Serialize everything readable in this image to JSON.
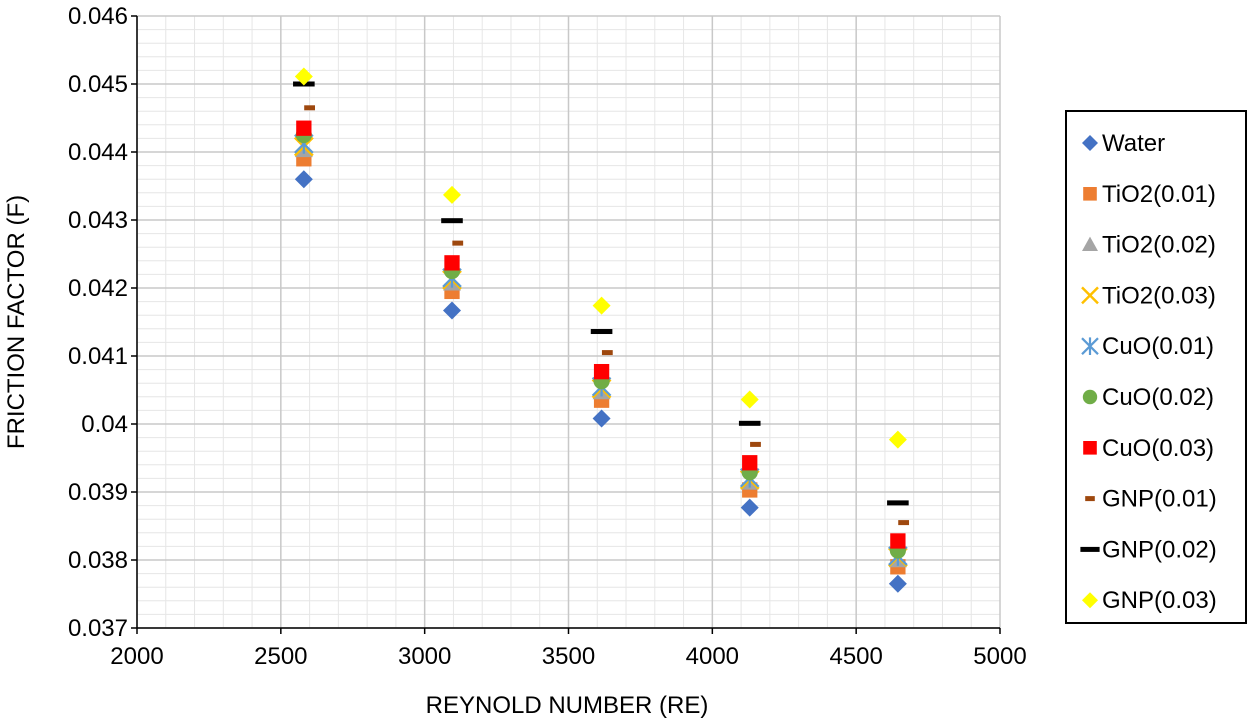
{
  "chart_data": {
    "type": "scatter",
    "xlabel": "REYNOLD NUMBER (RE)",
    "ylabel": "FRICTION FACTOR (F)",
    "xlim": [
      2000,
      5000
    ],
    "ylim": [
      0.037,
      0.046
    ],
    "x_ticks": [
      "2000",
      "2500",
      "3000",
      "3500",
      "4000",
      "4500",
      "5000"
    ],
    "y_ticks": [
      "0.037",
      "0.038",
      "0.039",
      "0.04",
      "0.041",
      "0.042",
      "0.043",
      "0.044",
      "0.045",
      "0.046"
    ],
    "grid": true,
    "legend_position": "right",
    "series": [
      {
        "name": "Water",
        "marker": "diamond",
        "color": "#4472C4",
        "x": [
          2580,
          3095,
          3615,
          4130,
          4645
        ],
        "y": [
          0.0436,
          0.04167,
          0.04008,
          0.03877,
          0.03765
        ]
      },
      {
        "name": "TiO2(0.01)",
        "marker": "square",
        "color": "#ED7D31",
        "x": [
          2580,
          3095,
          3615,
          4130,
          4645
        ],
        "y": [
          0.0439,
          0.04195,
          0.04035,
          0.03903,
          0.0379
        ]
      },
      {
        "name": "TiO2(0.02)",
        "marker": "triangle",
        "color": "#A5A5A5",
        "x": [
          2580,
          3095,
          3615,
          4130,
          4645
        ],
        "y": [
          0.04403,
          0.04207,
          0.04047,
          0.03914,
          0.038
        ]
      },
      {
        "name": "TiO2(0.03)",
        "marker": "x",
        "color": "#FFC000",
        "x": [
          2580,
          3095,
          3615,
          4130,
          4645
        ],
        "y": [
          0.04408,
          0.04212,
          0.04052,
          0.03918,
          0.03804
        ]
      },
      {
        "name": "CuO(0.01)",
        "marker": "star",
        "color": "#5B9BD5",
        "x": [
          2580,
          3095,
          3615,
          4130,
          4645
        ],
        "y": [
          0.04412,
          0.04215,
          0.04055,
          0.03921,
          0.03806
        ]
      },
      {
        "name": "CuO(0.02)",
        "marker": "circle",
        "color": "#70AD47",
        "x": [
          2580,
          3095,
          3615,
          4130,
          4645
        ],
        "y": [
          0.04425,
          0.04225,
          0.04063,
          0.03929,
          0.03814
        ]
      },
      {
        "name": "CuO(0.03)",
        "marker": "square",
        "color": "#FF0000",
        "x": [
          2580,
          3095,
          3615,
          4130,
          4645
        ],
        "y": [
          0.04435,
          0.04237,
          0.04077,
          0.03943,
          0.03828
        ]
      },
      {
        "name": "GNP(0.01)",
        "marker": "dash-small",
        "color": "#9E480E",
        "x": [
          2600,
          3115,
          3635,
          4150,
          4665
        ],
        "y": [
          0.04465,
          0.04266,
          0.04105,
          0.0397,
          0.03855
        ]
      },
      {
        "name": "GNP(0.02)",
        "marker": "dash",
        "color": "#000000",
        "x": [
          2580,
          3095,
          3615,
          4130,
          4645
        ],
        "y": [
          0.045,
          0.04299,
          0.04136,
          0.04001,
          0.03884
        ]
      },
      {
        "name": "GNP(0.03)",
        "marker": "diamond",
        "color": "#FFFF00",
        "x": [
          2580,
          3095,
          3615,
          4130,
          4645
        ],
        "y": [
          0.04511,
          0.04337,
          0.04174,
          0.04036,
          0.03977
        ]
      }
    ]
  }
}
